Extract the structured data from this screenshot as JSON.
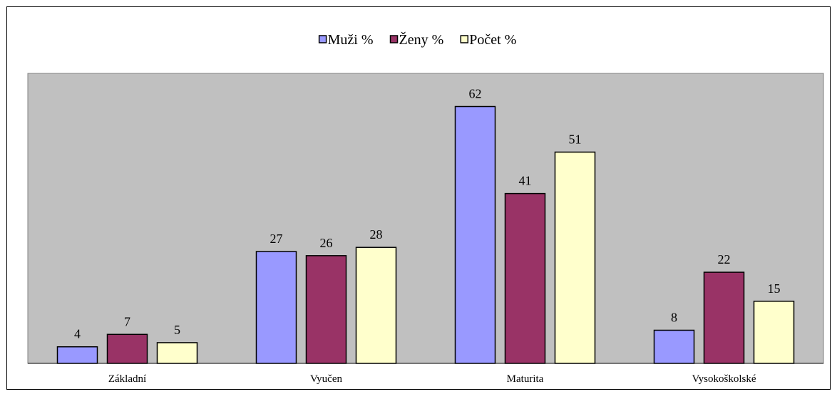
{
  "chart_data": {
    "type": "bar",
    "categories": [
      "Základní",
      "Vyučen",
      "Maturita",
      "Vysokoškolské"
    ],
    "series": [
      {
        "name": "Muži %",
        "color": "#9999ff",
        "values": [
          4,
          27,
          62,
          8
        ]
      },
      {
        "name": "Ženy %",
        "color": "#993366",
        "values": [
          7,
          26,
          41,
          22
        ]
      },
      {
        "name": "Počet %",
        "color": "#ffffcc",
        "values": [
          5,
          28,
          51,
          15
        ]
      }
    ],
    "ylim": [
      0,
      70
    ],
    "legend": "top"
  }
}
